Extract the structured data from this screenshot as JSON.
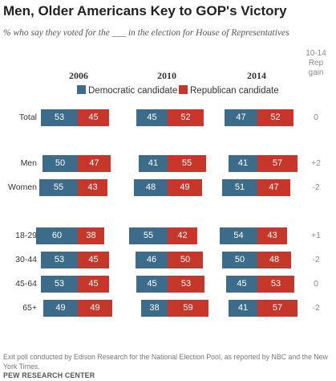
{
  "chart_data": {
    "type": "bar",
    "stacked": true,
    "orientation": "horizontal",
    "title": "Men, Older Americans Key to GOP's Victory",
    "subtitle": "% who say they voted for the ___ in the election for House of Representatives",
    "years": [
      "2006",
      "2010",
      "2014"
    ],
    "gain_header": "10-14 Rep gain",
    "legend": [
      {
        "name": "Democratic candidate",
        "color": "#3d6b8a"
      },
      {
        "name": "Republican candidate",
        "color": "#c7362b"
      }
    ],
    "rows": [
      {
        "label": "Total",
        "dem": [
          53,
          45,
          47
        ],
        "rep": [
          45,
          52,
          52
        ],
        "gain": "0"
      },
      {
        "label": "Men",
        "dem": [
          50,
          41,
          41
        ],
        "rep": [
          47,
          55,
          57
        ],
        "gain": "+2"
      },
      {
        "label": "Women",
        "dem": [
          55,
          48,
          51
        ],
        "rep": [
          43,
          49,
          47
        ],
        "gain": "-2"
      },
      {
        "label": "18-29",
        "dem": [
          60,
          55,
          54
        ],
        "rep": [
          38,
          42,
          43
        ],
        "gain": "+1"
      },
      {
        "label": "30-44",
        "dem": [
          53,
          46,
          50
        ],
        "rep": [
          45,
          50,
          48
        ],
        "gain": "-2"
      },
      {
        "label": "45-64",
        "dem": [
          53,
          45,
          45
        ],
        "rep": [
          45,
          53,
          53
        ],
        "gain": "0"
      },
      {
        "label": "65+",
        "dem": [
          49,
          38,
          41
        ],
        "rep": [
          49,
          59,
          57
        ],
        "gain": "-2"
      }
    ]
  },
  "footnote": "Exit poll conducted by Edison Research for the National Election Pool, as reported by NBC and the New York Times.",
  "source": "PEW RESEARCH CENTER"
}
